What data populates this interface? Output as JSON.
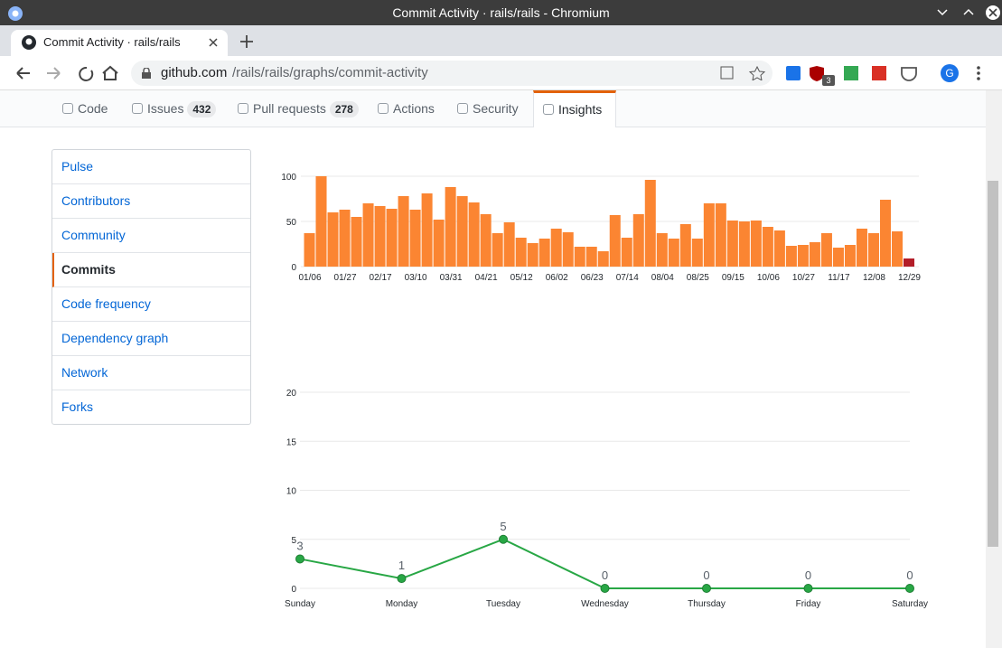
{
  "browser": {
    "window_title": "Commit Activity · rails/rails - Chromium",
    "tab_title": "Commit Activity · rails/rails",
    "url_host": "github.com",
    "url_path": "/rails/rails/graphs/commit-activity",
    "extension_badge": 3,
    "profile_initial": "G"
  },
  "repo_nav": [
    {
      "label": "Code"
    },
    {
      "label": "Issues",
      "count": 432
    },
    {
      "label": "Pull requests",
      "count": 278
    },
    {
      "label": "Actions"
    },
    {
      "label": "Security"
    },
    {
      "label": "Insights",
      "selected": true
    }
  ],
  "sidebar": [
    {
      "label": "Pulse"
    },
    {
      "label": "Contributors"
    },
    {
      "label": "Community"
    },
    {
      "label": "Commits",
      "selected": true
    },
    {
      "label": "Code frequency"
    },
    {
      "label": "Dependency graph"
    },
    {
      "label": "Network"
    },
    {
      "label": "Forks"
    }
  ],
  "chart_data": [
    {
      "type": "bar",
      "categories": [
        "01/06",
        null,
        null,
        "01/27",
        null,
        null,
        "02/17",
        null,
        null,
        "03/10",
        null,
        null,
        "03/31",
        null,
        null,
        "04/21",
        null,
        null,
        "05/12",
        null,
        null,
        "06/02",
        null,
        null,
        "06/23",
        null,
        null,
        "07/14",
        null,
        null,
        "08/04",
        null,
        null,
        "08/25",
        null,
        null,
        "09/15",
        null,
        null,
        "10/06",
        null,
        null,
        "10/27",
        null,
        null,
        "11/17",
        null,
        null,
        "12/08",
        null,
        null,
        "12/29"
      ],
      "values": [
        37,
        100,
        60,
        63,
        55,
        70,
        67,
        64,
        78,
        63,
        81,
        52,
        88,
        78,
        71,
        58,
        37,
        49,
        32,
        26,
        31,
        42,
        38,
        22,
        22,
        17,
        57,
        32,
        58,
        96,
        37,
        31,
        47,
        31,
        70,
        70,
        51,
        50,
        51,
        44,
        40,
        23,
        24,
        27,
        37,
        21,
        24,
        42,
        37,
        74,
        39,
        9
      ],
      "color": "#fb8532",
      "last_color": "#b31d28",
      "ylim": [
        0,
        100
      ],
      "yticks": [
        0,
        50,
        100
      ],
      "grid": true
    },
    {
      "type": "line",
      "categories": [
        "Sunday",
        "Monday",
        "Tuesday",
        "Wednesday",
        "Thursday",
        "Friday",
        "Saturday"
      ],
      "values": [
        3,
        1,
        5,
        0,
        0,
        0,
        0
      ],
      "color": "#28a745",
      "ylim": [
        0,
        20
      ],
      "yticks": [
        0,
        5,
        10,
        15,
        20
      ],
      "grid": true
    }
  ]
}
